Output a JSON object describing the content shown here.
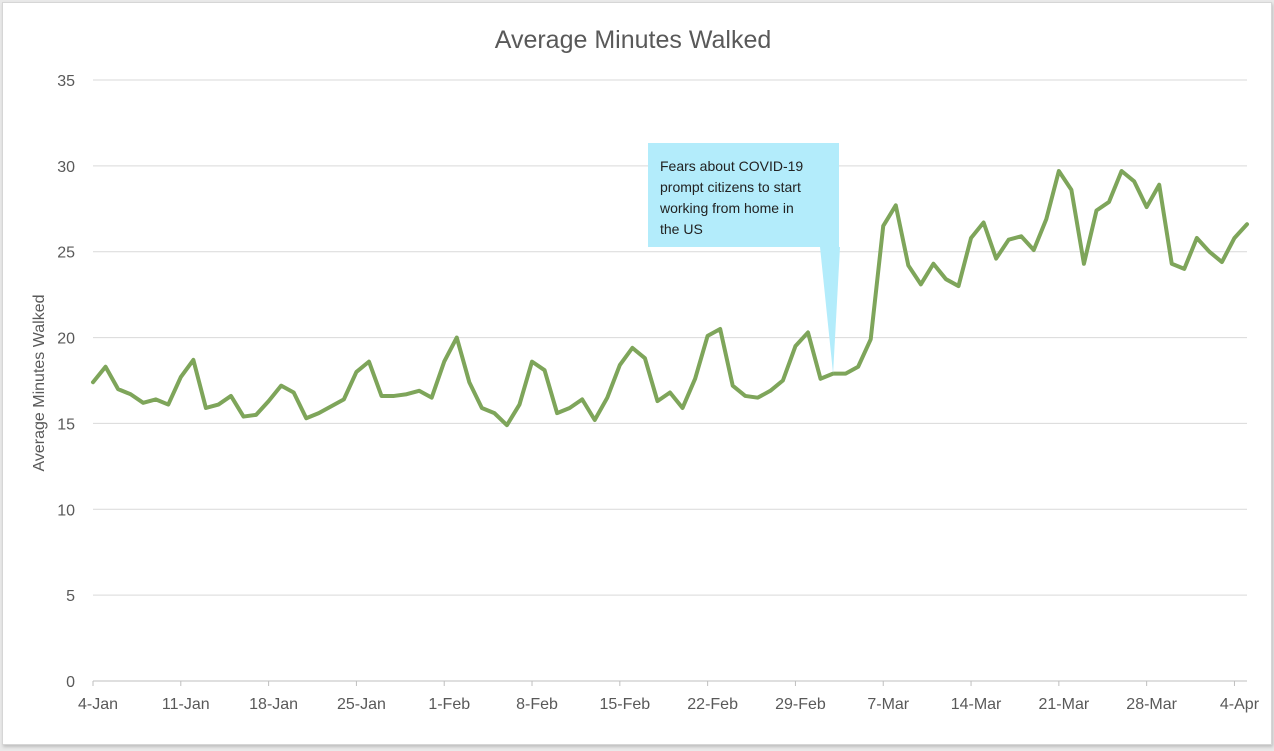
{
  "chart_data": {
    "type": "line",
    "title": "Average Minutes Walked",
    "xlabel": "",
    "ylabel": "Average Minutes Walked",
    "ylim": [
      0,
      35
    ],
    "yticks": [
      0,
      5,
      10,
      15,
      20,
      25,
      30,
      35
    ],
    "grid": true,
    "legend": "none",
    "line_color": "#7ea55a",
    "x_tick_labels": [
      "4-Jan",
      "11-Jan",
      "18-Jan",
      "25-Jan",
      "1-Feb",
      "8-Feb",
      "15-Feb",
      "22-Feb",
      "29-Feb",
      "7-Mar",
      "14-Mar",
      "21-Mar",
      "28-Mar",
      "4-Apr"
    ],
    "x": [
      "2020-01-04",
      "2020-01-05",
      "2020-01-06",
      "2020-01-07",
      "2020-01-08",
      "2020-01-09",
      "2020-01-10",
      "2020-01-11",
      "2020-01-12",
      "2020-01-13",
      "2020-01-14",
      "2020-01-15",
      "2020-01-16",
      "2020-01-17",
      "2020-01-18",
      "2020-01-19",
      "2020-01-20",
      "2020-01-21",
      "2020-01-22",
      "2020-01-23",
      "2020-01-24",
      "2020-01-25",
      "2020-01-26",
      "2020-01-27",
      "2020-01-28",
      "2020-01-29",
      "2020-01-30",
      "2020-01-31",
      "2020-02-01",
      "2020-02-02",
      "2020-02-03",
      "2020-02-04",
      "2020-02-05",
      "2020-02-06",
      "2020-02-07",
      "2020-02-08",
      "2020-02-09",
      "2020-02-10",
      "2020-02-11",
      "2020-02-12",
      "2020-02-13",
      "2020-02-14",
      "2020-02-15",
      "2020-02-16",
      "2020-02-17",
      "2020-02-18",
      "2020-02-19",
      "2020-02-20",
      "2020-02-21",
      "2020-02-22",
      "2020-02-23",
      "2020-02-24",
      "2020-02-25",
      "2020-02-26",
      "2020-02-27",
      "2020-02-28",
      "2020-02-29",
      "2020-03-01",
      "2020-03-02",
      "2020-03-03",
      "2020-03-04",
      "2020-03-05",
      "2020-03-06",
      "2020-03-07",
      "2020-03-08",
      "2020-03-09",
      "2020-03-10",
      "2020-03-11",
      "2020-03-12",
      "2020-03-13",
      "2020-03-14",
      "2020-03-15",
      "2020-03-16",
      "2020-03-17",
      "2020-03-18",
      "2020-03-19",
      "2020-03-20",
      "2020-03-21",
      "2020-03-22",
      "2020-03-23",
      "2020-03-24",
      "2020-03-25",
      "2020-03-26",
      "2020-03-27",
      "2020-03-28",
      "2020-03-29",
      "2020-03-30",
      "2020-03-31",
      "2020-04-01",
      "2020-04-02",
      "2020-04-03",
      "2020-04-04",
      "2020-04-05"
    ],
    "values": [
      17.4,
      18.3,
      17.0,
      16.7,
      16.2,
      16.4,
      16.1,
      17.7,
      18.7,
      15.9,
      16.1,
      16.6,
      15.4,
      15.5,
      16.3,
      17.2,
      16.8,
      15.3,
      15.6,
      16.0,
      16.4,
      18.0,
      18.6,
      16.6,
      16.6,
      16.7,
      16.9,
      16.5,
      18.6,
      20.0,
      17.4,
      15.9,
      15.6,
      14.9,
      16.1,
      18.6,
      18.1,
      15.6,
      15.9,
      16.4,
      15.2,
      16.5,
      18.4,
      19.4,
      18.8,
      16.3,
      16.8,
      15.9,
      17.6,
      20.1,
      20.5,
      17.2,
      16.6,
      16.5,
      16.9,
      17.5,
      19.5,
      20.3,
      17.6,
      17.9,
      17.9,
      18.3,
      19.9,
      26.5,
      27.7,
      24.2,
      23.1,
      24.3,
      23.4,
      23.0,
      25.8,
      26.7,
      24.6,
      25.7,
      25.9,
      25.1,
      26.9,
      29.7,
      28.6,
      24.3,
      27.4,
      27.9,
      29.7,
      29.1,
      27.6,
      28.9,
      24.3,
      24.0,
      25.8,
      25.0,
      24.4,
      25.8,
      26.6
    ],
    "annotation": {
      "lines": [
        "Fears about COVID-19",
        "prompt citizens to start",
        "working from home in",
        "the US"
      ],
      "x": "2020-03-03",
      "y": 17.9,
      "fill": "#b3ecfb"
    }
  }
}
